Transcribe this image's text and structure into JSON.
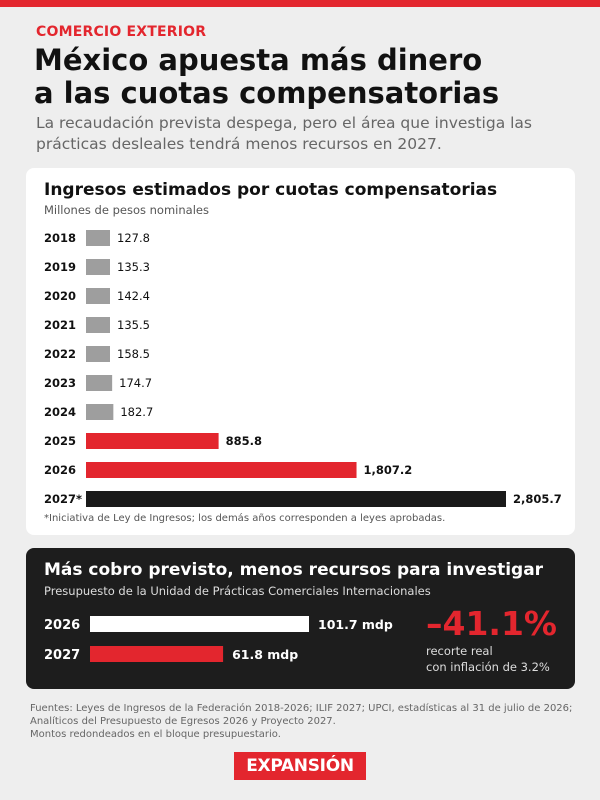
{
  "section": "COMERCIO EXTERIOR",
  "headline_line1": "México apuesta más dinero",
  "headline_line2": "a las cuotas compensatorias",
  "dek": "La recaudación prevista despega, pero el área que investiga las prácticas desleales tendrá menos recursos en 2027.",
  "colors": {
    "accent": "#e3262e",
    "gray_bar": "#9e9e9e",
    "black_bar": "#1a1a1a",
    "panel_bg": "#1d1d1d"
  },
  "chart_data": [
    {
      "type": "bar",
      "orientation": "horizontal",
      "title": "Ingresos estimados por cuotas compensatorias",
      "subtitle": "Millones de pesos nominales",
      "categories": [
        "2018",
        "2019",
        "2020",
        "2021",
        "2022",
        "2023",
        "2024",
        "2025",
        "2026",
        "2027*"
      ],
      "values": [
        127.8,
        135.3,
        142.4,
        135.5,
        158.5,
        174.7,
        182.7,
        885.8,
        1807.2,
        2805.7
      ],
      "value_labels": [
        "127.8",
        "135.3",
        "142.4",
        "135.5",
        "158.5",
        "174.7",
        "182.7",
        "885.8",
        "1,807.2",
        "2,805.7"
      ],
      "bar_colors": [
        "#9e9e9e",
        "#9e9e9e",
        "#9e9e9e",
        "#9e9e9e",
        "#9e9e9e",
        "#9e9e9e",
        "#9e9e9e",
        "#e3262e",
        "#e3262e",
        "#1a1a1a"
      ],
      "bold_categories": [
        "2025",
        "2026",
        "2027*"
      ],
      "xlim": [
        0,
        2805.7
      ],
      "grid": false,
      "footnote": "*Iniciativa de Ley de Ingresos; los demás años corresponden a leyes aprobadas."
    },
    {
      "type": "bar",
      "orientation": "horizontal",
      "title": "Más cobro previsto, menos recursos para investigar",
      "subtitle": "Presupuesto de la Unidad de Prácticas Comerciales Internacionales",
      "categories": [
        "2026",
        "2027"
      ],
      "values": [
        101.7,
        61.8
      ],
      "value_labels": [
        "101.7 mdp",
        "61.8 mdp"
      ],
      "bar_colors": [
        "#ffffff",
        "#e3262e"
      ],
      "xlim": [
        0,
        101.7
      ],
      "grid": false,
      "highlight_value": "–41.1%",
      "highlight_caption_line1": "recorte real",
      "highlight_caption_line2": "con inflación de 3.2%"
    }
  ],
  "sources": [
    "Fuentes: Leyes de Ingresos de la Federación 2018-2026; ILIF 2027; UPCI, estadísticas al 31 de julio de 2026;",
    "Analíticos del Presupuesto de Egresos 2026 y Proyecto 2027.",
    "Montos redondeados en el bloque presupuestario."
  ],
  "logo_text": "EXPANSIÓN"
}
